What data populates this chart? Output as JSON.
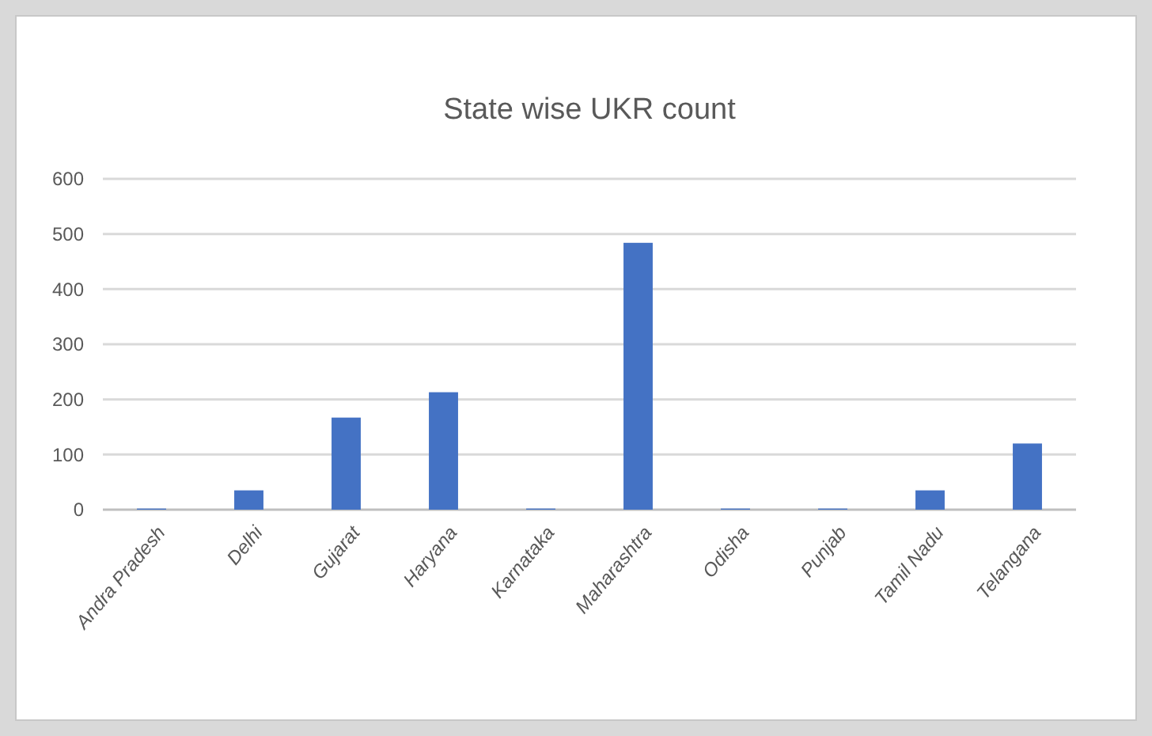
{
  "chart_data": {
    "type": "bar",
    "title": "State wise UKR count",
    "categories": [
      "Andra Pradesh",
      "Delhi",
      "Gujarat",
      "Haryana",
      "Karnataka",
      "Maharashtra",
      "Odisha",
      "Punjab",
      "Tamil Nadu",
      "Telangana"
    ],
    "values": [
      2,
      35,
      167,
      213,
      2,
      484,
      2,
      2,
      35,
      120
    ],
    "color": "#4472c4",
    "ylim": [
      0,
      600
    ],
    "yticks": [
      0,
      100,
      200,
      300,
      400,
      500,
      600
    ],
    "grid": "y"
  }
}
